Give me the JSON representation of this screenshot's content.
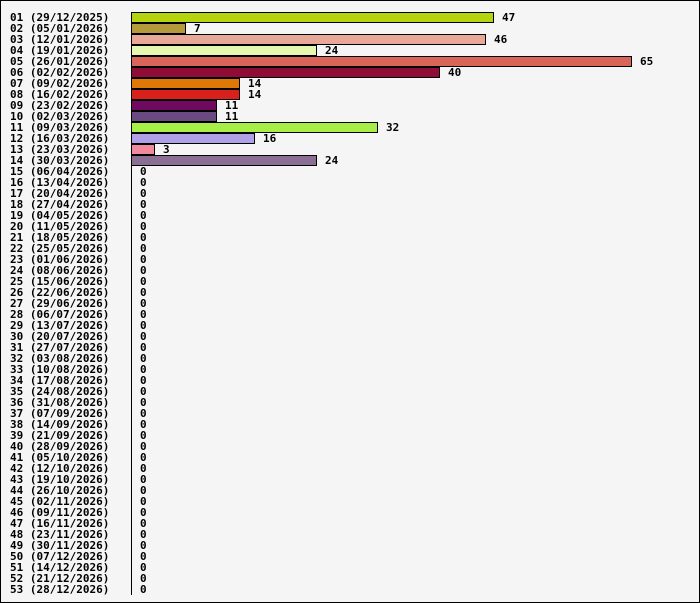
{
  "chart_data": {
    "type": "bar",
    "orientation": "horizontal",
    "categories": [
      "01 (29/12/2025)",
      "02 (05/01/2026)",
      "03 (12/01/2026)",
      "04 (19/01/2026)",
      "05 (26/01/2026)",
      "06 (02/02/2026)",
      "07 (09/02/2026)",
      "08 (16/02/2026)",
      "09 (23/02/2026)",
      "10 (02/03/2026)",
      "11 (09/03/2026)",
      "12 (16/03/2026)",
      "13 (23/03/2026)",
      "14 (30/03/2026)",
      "15 (06/04/2026)",
      "16 (13/04/2026)",
      "17 (20/04/2026)",
      "18 (27/04/2026)",
      "19 (04/05/2026)",
      "20 (11/05/2026)",
      "21 (18/05/2026)",
      "22 (25/05/2026)",
      "23 (01/06/2026)",
      "24 (08/06/2026)",
      "25 (15/06/2026)",
      "26 (22/06/2026)",
      "27 (29/06/2026)",
      "28 (06/07/2026)",
      "29 (13/07/2026)",
      "30 (20/07/2026)",
      "31 (27/07/2026)",
      "32 (03/08/2026)",
      "33 (10/08/2026)",
      "34 (17/08/2026)",
      "35 (24/08/2026)",
      "36 (31/08/2026)",
      "37 (07/09/2026)",
      "38 (14/09/2026)",
      "39 (21/09/2026)",
      "40 (28/09/2026)",
      "41 (05/10/2026)",
      "42 (12/10/2026)",
      "43 (19/10/2026)",
      "44 (26/10/2026)",
      "45 (02/11/2026)",
      "46 (09/11/2026)",
      "47 (16/11/2026)",
      "48 (23/11/2026)",
      "49 (30/11/2026)",
      "50 (07/12/2026)",
      "51 (14/12/2026)",
      "52 (21/12/2026)",
      "53 (28/12/2026)"
    ],
    "values": [
      47,
      7,
      46,
      24,
      65,
      40,
      14,
      14,
      11,
      11,
      32,
      16,
      3,
      24,
      0,
      0,
      0,
      0,
      0,
      0,
      0,
      0,
      0,
      0,
      0,
      0,
      0,
      0,
      0,
      0,
      0,
      0,
      0,
      0,
      0,
      0,
      0,
      0,
      0,
      0,
      0,
      0,
      0,
      0,
      0,
      0,
      0,
      0,
      0,
      0,
      0,
      0,
      0
    ],
    "colors": [
      "#b5d40f",
      "#b59a3c",
      "#e8a898",
      "#e6f7b0",
      "#d8645a",
      "#8e0c35",
      "#e07808",
      "#d8201c",
      "#700a60",
      "#6a4a80",
      "#a8ee48",
      "#b0a0e8",
      "#f08a9c",
      "#8a6e94"
    ],
    "xlim": [
      0,
      65
    ],
    "title": "",
    "xlabel": "",
    "ylabel": ""
  }
}
